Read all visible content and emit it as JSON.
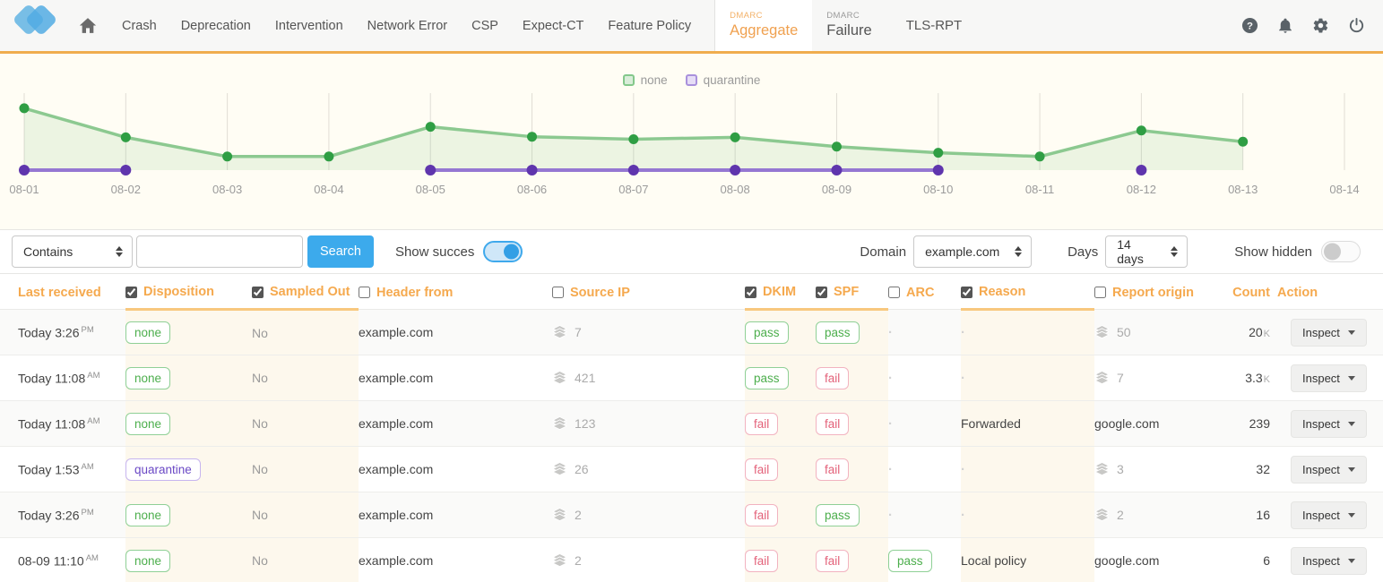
{
  "nav": {
    "items": [
      "Crash",
      "Deprecation",
      "Intervention",
      "Network Error",
      "CSP",
      "Expect-CT",
      "Feature Policy"
    ],
    "tabs": [
      {
        "group": "DMARC",
        "label": "Aggregate",
        "active": true
      },
      {
        "group": "DMARC",
        "label": "Failure",
        "active": false
      }
    ],
    "tls_label": "TLS-RPT",
    "action_icons": [
      "help-icon",
      "notifications-icon",
      "settings-icon",
      "logout-icon"
    ]
  },
  "chart_data": {
    "type": "line",
    "title": "",
    "xlabel": "",
    "ylabel": "",
    "grid": "vertical-only",
    "ylim": [
      0,
      110
    ],
    "x": [
      "08-01",
      "08-02",
      "08-03",
      "08-04",
      "08-05",
      "08-06",
      "08-07",
      "08-08",
      "08-09",
      "08-10",
      "08-11",
      "08-12",
      "08-13",
      "08-14"
    ],
    "series": [
      {
        "name": "none",
        "values": [
          100,
          53,
          22,
          22,
          70,
          54,
          50,
          53,
          38,
          28,
          22,
          64,
          46,
          null
        ],
        "point_color": "#2f9e44",
        "line_color": "#8cc990",
        "fill_color": "rgba(130,195,130,0.15)"
      },
      {
        "name": "quarantine",
        "values": [
          0,
          0,
          null,
          null,
          0,
          0,
          0,
          0,
          0,
          0,
          null,
          0,
          null,
          null
        ],
        "point_color": "#5f35ad",
        "line_color": "#9577d2",
        "fill_color": "none"
      }
    ],
    "legend": [
      {
        "label": "none",
        "swatch_fill": "#d9edd9",
        "swatch_border": "#84c88b"
      },
      {
        "label": "quarantine",
        "swatch_fill": "#e6ddf6",
        "swatch_border": "#a991dc"
      }
    ],
    "legend_position": "top-center"
  },
  "filter_bar": {
    "match_select": {
      "value": "Contains"
    },
    "search_input": {
      "value": "",
      "placeholder": ""
    },
    "search_button": "Search",
    "show_success_label": "Show succes",
    "show_success_on": true,
    "domain_label": "Domain",
    "domain_select": {
      "value": "example.com"
    },
    "days_label": "Days",
    "days_select": {
      "value": "14 days"
    },
    "show_hidden_label": "Show hidden",
    "show_hidden_on": false
  },
  "table": {
    "columns": [
      {
        "label": "Last received",
        "checkbox": null
      },
      {
        "label": "Disposition",
        "checkbox": true
      },
      {
        "label": "Sampled Out",
        "checkbox": true
      },
      {
        "label": "Header from",
        "checkbox": false
      },
      {
        "label": "Source IP",
        "checkbox": false
      },
      {
        "label": "DKIM",
        "checkbox": true
      },
      {
        "label": "SPF",
        "checkbox": true
      },
      {
        "label": "ARC",
        "checkbox": false
      },
      {
        "label": "Reason",
        "checkbox": true
      },
      {
        "label": "Report origin",
        "checkbox": false
      },
      {
        "label": "Count",
        "checkbox": null
      },
      {
        "label": "Action",
        "checkbox": null
      }
    ],
    "badge_colors": {
      "none": "green",
      "pass": "green",
      "fail": "red",
      "quarantine": "purple"
    },
    "action_button_label": "Inspect",
    "rows": [
      {
        "last_received": "Today 3:26",
        "meridiem": "PM",
        "disposition": "none",
        "sampled_out": "No",
        "header_from": "example.com",
        "source_ip": "7",
        "dkim": "pass",
        "spf": "pass",
        "arc": null,
        "reason": null,
        "report_origin": {
          "type": "count",
          "value": "50"
        },
        "count": "20",
        "count_suffix": "K"
      },
      {
        "last_received": "Today 11:08",
        "meridiem": "AM",
        "disposition": "none",
        "sampled_out": "No",
        "header_from": "example.com",
        "source_ip": "421",
        "dkim": "pass",
        "spf": "fail",
        "arc": null,
        "reason": null,
        "report_origin": {
          "type": "count",
          "value": "7"
        },
        "count": "3.3",
        "count_suffix": "K"
      },
      {
        "last_received": "Today 11:08",
        "meridiem": "AM",
        "disposition": "none",
        "sampled_out": "No",
        "header_from": "example.com",
        "source_ip": "123",
        "dkim": "fail",
        "spf": "fail",
        "arc": null,
        "reason": "Forwarded",
        "report_origin": {
          "type": "domain",
          "value": "google.com"
        },
        "count": "239",
        "count_suffix": ""
      },
      {
        "last_received": "Today 1:53",
        "meridiem": "AM",
        "disposition": "quarantine",
        "sampled_out": "No",
        "header_from": "example.com",
        "source_ip": "26",
        "dkim": "fail",
        "spf": "fail",
        "arc": null,
        "reason": null,
        "report_origin": {
          "type": "count",
          "value": "3"
        },
        "count": "32",
        "count_suffix": ""
      },
      {
        "last_received": "Today 3:26",
        "meridiem": "PM",
        "disposition": "none",
        "sampled_out": "No",
        "header_from": "example.com",
        "source_ip": "2",
        "dkim": "fail",
        "spf": "pass",
        "arc": null,
        "reason": null,
        "report_origin": {
          "type": "count",
          "value": "2"
        },
        "count": "16",
        "count_suffix": ""
      },
      {
        "last_received": "08-09 11:10",
        "meridiem": "AM",
        "disposition": "none",
        "sampled_out": "No",
        "header_from": "example.com",
        "source_ip": "2",
        "dkim": "fail",
        "spf": "fail",
        "arc": "pass",
        "reason": "Local policy",
        "report_origin": {
          "type": "domain",
          "value": "google.com"
        },
        "count": "6",
        "count_suffix": ""
      }
    ]
  }
}
